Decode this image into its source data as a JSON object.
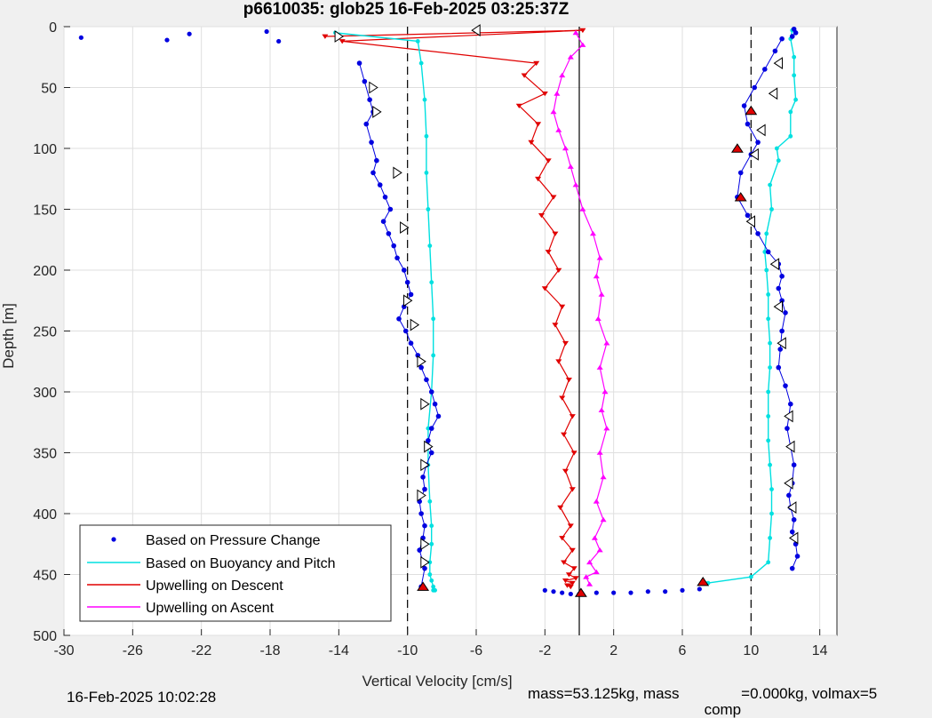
{
  "chart_data": {
    "type": "scatter",
    "title": "p6610035: glob25 16-Feb-2025 03:25:37Z",
    "xlabel": "Vertical Velocity [cm/s]",
    "ylabel": "Depth [m]",
    "xlim": [
      -30,
      15
    ],
    "ylim": [
      0,
      500
    ],
    "y_reversed": true,
    "grid": true,
    "x_ticks": [
      -30,
      -26,
      -22,
      -18,
      -14,
      -10,
      -6,
      -2,
      2,
      6,
      10,
      14
    ],
    "y_ticks": [
      0,
      50,
      100,
      150,
      200,
      250,
      300,
      350,
      400,
      450,
      500
    ],
    "reference_lines": {
      "solid_x": 0,
      "dashed_x": [
        -10,
        10
      ]
    },
    "legend_position": "bottom-left",
    "series": [
      {
        "name": "Based on Pressure Change",
        "style": "dots",
        "color": "#0000e0",
        "descent": {
          "x": [
            -12.8,
            -12.5,
            -12.2,
            -12.0,
            -12.4,
            -12.1,
            -11.8,
            -12.0,
            -11.6,
            -11.3,
            -11.0,
            -11.4,
            -11.1,
            -10.8,
            -10.6,
            -10.2,
            -10.0,
            -9.8,
            -10.2,
            -10.5,
            -10.1,
            -9.8,
            -9.4,
            -9.2,
            -8.9,
            -8.6,
            -8.4,
            -8.2,
            -8.6,
            -8.8,
            -8.6,
            -8.9,
            -9.1,
            -9.0,
            -9.3,
            -9.2,
            -9.0,
            -9.1,
            -9.3,
            -9.0,
            -9.2
          ],
          "y": [
            30,
            45,
            60,
            70,
            80,
            95,
            110,
            120,
            130,
            140,
            150,
            160,
            170,
            180,
            190,
            200,
            210,
            220,
            230,
            240,
            250,
            260,
            270,
            280,
            290,
            300,
            310,
            320,
            330,
            340,
            350,
            360,
            370,
            380,
            390,
            400,
            410,
            420,
            430,
            445,
            460
          ]
        },
        "ascent": {
          "x": [
            11.8,
            11.4,
            10.8,
            10.2,
            9.6,
            9.8,
            10.4,
            10.0,
            9.4,
            9.2,
            9.8,
            10.4,
            11.0,
            11.6,
            11.8,
            11.6,
            11.8,
            12.0,
            11.8,
            11.7,
            11.6,
            12.0,
            12.3,
            12.2,
            12.1,
            12.3,
            12.5,
            12.4,
            12.2,
            12.3,
            12.5,
            12.4,
            12.6,
            12.7,
            12.4,
            12.5,
            12.6,
            12.4
          ],
          "y": [
            10,
            20,
            35,
            50,
            65,
            80,
            95,
            105,
            120,
            140,
            155,
            170,
            185,
            195,
            205,
            215,
            225,
            235,
            250,
            265,
            280,
            295,
            310,
            320,
            330,
            345,
            360,
            375,
            385,
            395,
            405,
            415,
            425,
            435,
            445,
            2,
            5,
            8
          ]
        },
        "surface_x": [
          -29.0,
          -24.0,
          -22.7,
          -17.5,
          -18.2
        ],
        "surface_y": [
          9,
          11,
          6,
          12,
          4
        ],
        "bottom_x": [
          -2.0,
          -1.5,
          -1.0,
          -0.5,
          0.0,
          1.0,
          2.0,
          3.0,
          4.0,
          5.0,
          6.0,
          7.0
        ],
        "bottom_y": [
          463,
          464,
          465,
          466,
          466,
          465,
          465,
          465,
          464,
          464,
          463,
          462
        ]
      },
      {
        "name": "Based on Buoyancy and Pitch",
        "style": "line",
        "color": "#00e0e0",
        "descent": {
          "x": [
            -14.2,
            -9.4,
            -9.2,
            -9.0,
            -8.9,
            -8.9,
            -8.8,
            -8.7,
            -8.6,
            -8.5,
            -8.5,
            -8.6,
            -8.8,
            -8.8,
            -8.7,
            -8.6,
            -8.6,
            -8.7,
            -8.7,
            -8.6,
            -8.5,
            -8.5,
            -8.4
          ],
          "y": [
            5,
            12,
            30,
            60,
            90,
            120,
            150,
            180,
            210,
            240,
            270,
            300,
            330,
            360,
            390,
            410,
            425,
            440,
            450,
            455,
            460,
            463,
            463
          ]
        },
        "ascent": {
          "x": [
            7.5,
            10.0,
            11.0,
            11.1,
            11.2,
            11.2,
            11.1,
            11.0,
            11.0,
            11.0,
            11.1,
            11.1,
            11.0,
            11.0,
            10.9,
            10.8,
            10.9,
            11.2,
            11.1,
            11.6,
            11.5,
            12.3,
            12.3,
            12.6,
            12.5,
            12.5,
            12.3,
            12.4
          ],
          "y": [
            457,
            452,
            440,
            420,
            400,
            380,
            360,
            340,
            320,
            300,
            280,
            260,
            240,
            220,
            200,
            185,
            170,
            150,
            130,
            110,
            100,
            90,
            70,
            60,
            40,
            25,
            10,
            3
          ]
        }
      },
      {
        "name": "Upwelling on Descent",
        "style": "line-with-triangle-markers",
        "color": "#e00000",
        "x": [
          -14.8,
          0.2,
          -13.8,
          -2.5,
          -3.2,
          -2.0,
          -3.5,
          -2.4,
          -2.8,
          -1.8,
          -2.4,
          -1.5,
          -2.2,
          -1.4,
          -1.8,
          -1.2,
          -2.0,
          -1.0,
          -1.4,
          -0.8,
          -1.2,
          -0.6,
          -1.0,
          -0.4,
          -0.9,
          -0.3,
          -0.8,
          -0.4,
          -1.1,
          -0.5,
          -1.0,
          -0.4,
          -0.9,
          -0.3,
          -0.6,
          -0.2,
          -0.8,
          -0.4,
          -0.7,
          -0.5
        ],
        "y": [
          8,
          3,
          12,
          30,
          40,
          55,
          65,
          80,
          95,
          110,
          125,
          140,
          155,
          170,
          185,
          200,
          215,
          230,
          245,
          260,
          275,
          290,
          305,
          320,
          335,
          350,
          365,
          380,
          395,
          410,
          420,
          430,
          440,
          445,
          450,
          453,
          455,
          457,
          459,
          460
        ]
      },
      {
        "name": "Upwelling on Ascent",
        "style": "line-with-triangle-markers",
        "color": "#ff00ff",
        "x": [
          -0.2,
          0.2,
          -0.5,
          -1.0,
          -1.3,
          -1.5,
          -1.2,
          -0.8,
          -0.5,
          -0.2,
          0.2,
          0.8,
          1.2,
          1.0,
          1.3,
          1.1,
          1.6,
          1.2,
          1.5,
          1.3,
          1.6,
          1.2,
          1.4,
          1.0,
          1.4,
          0.9,
          1.2,
          0.6,
          1.0,
          0.4,
          0.6
        ],
        "y": [
          5,
          15,
          25,
          40,
          55,
          70,
          85,
          100,
          115,
          130,
          150,
          170,
          190,
          205,
          220,
          240,
          260,
          280,
          300,
          315,
          330,
          350,
          370,
          390,
          405,
          420,
          430,
          440,
          448,
          452,
          458
        ]
      }
    ],
    "markers": {
      "descent_white_x": [
        -14.0,
        -12.0,
        -11.8,
        -10.6,
        -10.2,
        -10.0,
        -9.6,
        -9.2,
        -9.0,
        -8.8,
        -9.0,
        -9.2,
        -9.0,
        -9.0
      ],
      "descent_white_y": [
        8,
        50,
        70,
        120,
        165,
        225,
        245,
        275,
        310,
        345,
        360,
        385,
        425,
        440
      ],
      "ascent_white_x": [
        -6.0,
        11.6,
        11.3,
        10.6,
        10.2,
        10.0,
        11.4,
        11.6,
        11.8,
        12.2,
        12.3,
        12.2,
        12.4,
        12.5
      ],
      "ascent_white_y": [
        3,
        30,
        55,
        85,
        105,
        160,
        195,
        230,
        260,
        320,
        345,
        375,
        395,
        420
      ],
      "red_x": [
        -9.1,
        0.1,
        7.2,
        10.0,
        9.2,
        9.4
      ],
      "red_y": [
        460,
        465,
        456,
        69,
        100,
        140
      ]
    }
  },
  "legend": {
    "entries": [
      "Based on Pressure Change",
      "Based on Buoyancy and Pitch",
      "Upwelling on Descent",
      "Upwelling on Ascent"
    ]
  },
  "footer": {
    "timestamp": "16-Feb-2025 10:02:28",
    "mass_text": "mass=53.125kg, mass",
    "comp_sub": "comp",
    "rest_text": "=0.000kg, volmax=5"
  }
}
